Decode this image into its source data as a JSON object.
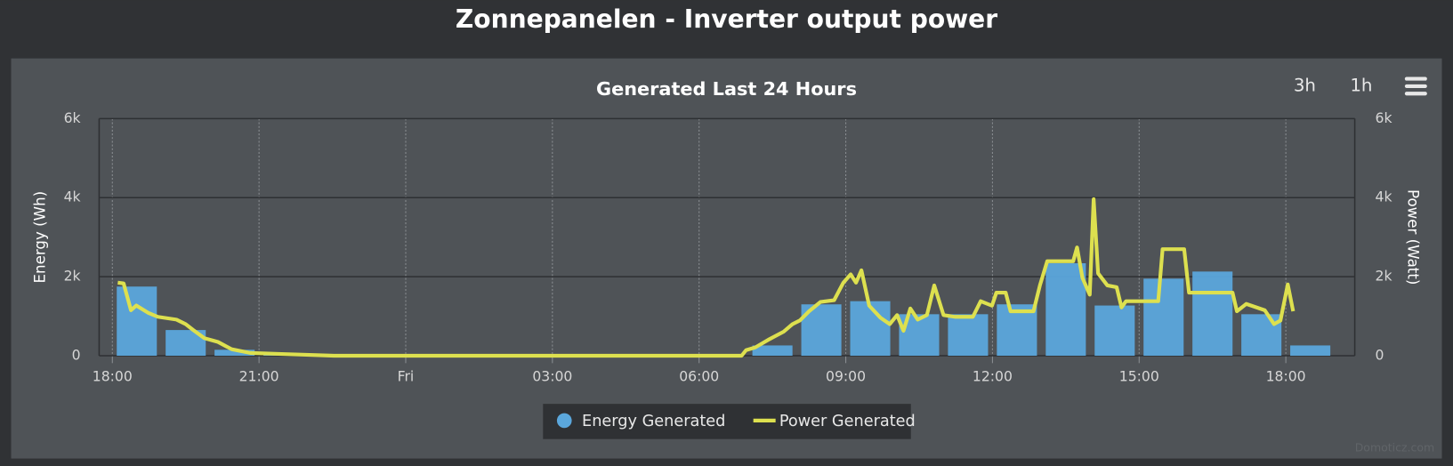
{
  "header": {
    "title": "Zonnepanelen - Inverter output power"
  },
  "buttons": [
    "3h",
    "1h"
  ],
  "credits": "Domoticz.com",
  "chart_data": {
    "type": "combo",
    "title": "Generated Last 24 Hours",
    "ylabel": "Energy (Wh)",
    "y2label": "Power (Watt)",
    "xlim": [
      17.73,
      43.41
    ],
    "xticks": [
      {
        "value": 18,
        "label": "18:00"
      },
      {
        "value": 21,
        "label": "21:00"
      },
      {
        "value": 24,
        "label": "Fri"
      },
      {
        "value": 27,
        "label": "03:00"
      },
      {
        "value": 30,
        "label": "06:00"
      },
      {
        "value": 33,
        "label": "09:00"
      },
      {
        "value": 36,
        "label": "12:00"
      },
      {
        "value": 39,
        "label": "15:00"
      },
      {
        "value": 42,
        "label": "18:00"
      }
    ],
    "ylim": [
      0,
      6000
    ],
    "yticks": [
      0,
      {
        "value": 2000,
        "label": "2k"
      },
      {
        "value": 4000,
        "label": "4k"
      },
      {
        "value": 6000,
        "label": "6k"
      }
    ],
    "y2lim": [
      0,
      6000
    ],
    "y2ticks": [
      0,
      {
        "value": 2000,
        "label": "2k"
      },
      {
        "value": 4000,
        "label": "4k"
      },
      {
        "value": 6000,
        "label": "6k"
      }
    ],
    "grid": true,
    "series": [
      {
        "name": "Energy Generated",
        "type": "bar",
        "color": "#5ba7dc",
        "axis": "y",
        "x": [
          18.5,
          19.5,
          20.5,
          21.5,
          22.5,
          23.5,
          24.5,
          25.5,
          26.5,
          27.5,
          28.5,
          29.5,
          30.5,
          31.5,
          32.5,
          33.5,
          34.5,
          35.5,
          36.5,
          37.5,
          38.5,
          39.5,
          40.5,
          41.5,
          42.5
        ],
        "values": [
          1750,
          650,
          150,
          40,
          0,
          0,
          0,
          0,
          0,
          0,
          0,
          0,
          0,
          260,
          1300,
          1380,
          1050,
          1050,
          1300,
          2340,
          1270,
          1950,
          2130,
          1050,
          260
        ]
      },
      {
        "name": "Power Generated",
        "type": "line",
        "color": "#dde04f",
        "axis": "y2",
        "x": [
          18.11,
          18.23,
          18.38,
          18.49,
          18.74,
          18.93,
          19.31,
          19.5,
          19.65,
          19.88,
          20.16,
          20.44,
          20.82,
          21.39,
          21.96,
          22.53,
          30.87,
          30.96,
          31.15,
          31.44,
          31.73,
          31.91,
          32.06,
          32.25,
          32.48,
          32.76,
          32.95,
          33.1,
          33.21,
          33.32,
          33.48,
          33.71,
          33.9,
          34.05,
          34.18,
          34.32,
          34.47,
          34.66,
          34.81,
          35.0,
          35.23,
          35.6,
          35.76,
          35.99,
          36.08,
          36.27,
          36.37,
          36.84,
          36.97,
          37.12,
          37.65,
          37.73,
          37.84,
          37.99,
          38.07,
          38.16,
          38.35,
          38.54,
          38.64,
          38.73,
          39.39,
          39.48,
          39.92,
          40.02,
          40.91,
          41.0,
          41.19,
          41.57,
          41.76,
          41.89,
          42.04,
          42.15
        ],
        "values": [
          1850,
          1830,
          1150,
          1270,
          1080,
          985,
          915,
          800,
          655,
          445,
          350,
          165,
          70,
          47,
          23,
          0,
          0,
          140,
          210,
          420,
          610,
          800,
          890,
          1125,
          1360,
          1405,
          1850,
          2060,
          1850,
          2160,
          1265,
          960,
          800,
          1030,
          630,
          1195,
          915,
          1030,
          1780,
          1030,
          985,
          985,
          1380,
          1265,
          1595,
          1595,
          1125,
          1125,
          1780,
          2390,
          2390,
          2740,
          1970,
          1545,
          3960,
          2085,
          1780,
          1735,
          1220,
          1380,
          1380,
          2695,
          2695,
          1595,
          1595,
          1125,
          1310,
          1150,
          800,
          890,
          1805,
          1125
        ]
      }
    ]
  }
}
